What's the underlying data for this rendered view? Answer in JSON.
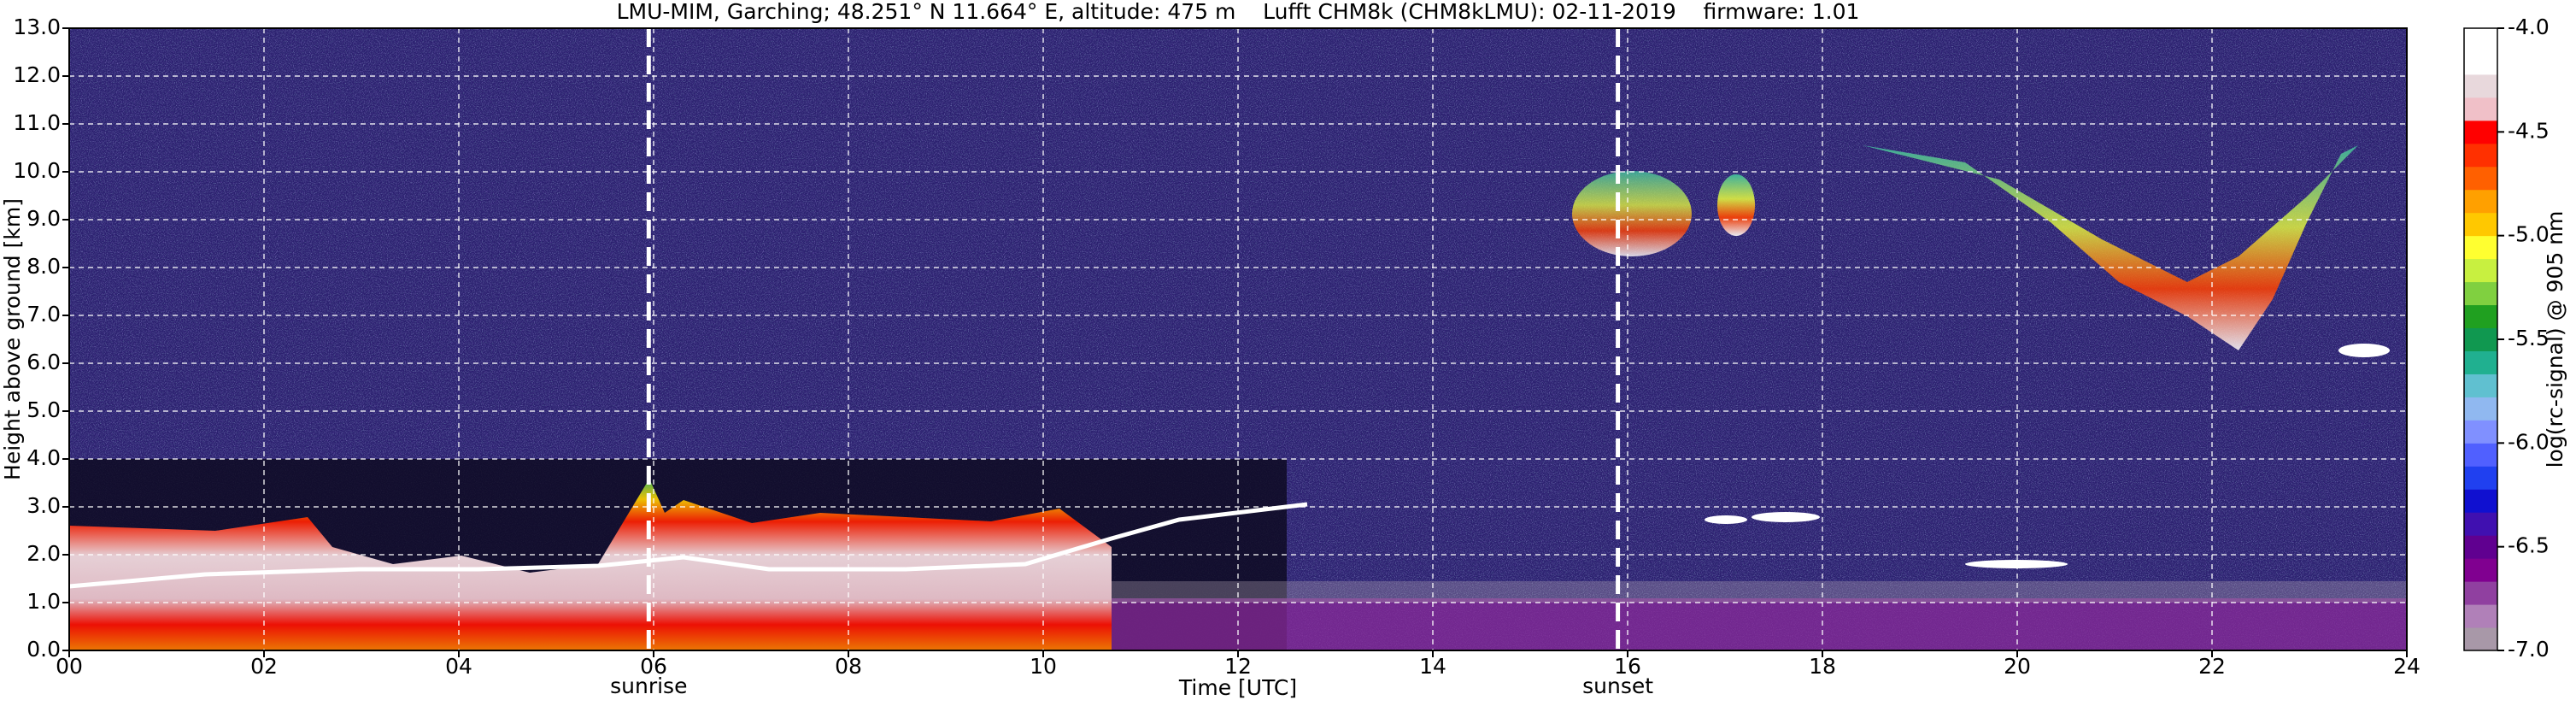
{
  "chart_data": {
    "type": "heatmap",
    "title": "LMU-MIM, Garching; 48.251° N 11.664° E, altitude: 475 m    Lufft CHM8k (CHM8kLMU): 02-11-2019    firmware: 1.01",
    "x_label": "Time [UTC]",
    "y_label": "Height above ground [km]",
    "xlim": [
      0,
      24
    ],
    "xticks": [
      {
        "value": 0,
        "label": "00"
      },
      {
        "value": 2,
        "label": "02"
      },
      {
        "value": 4,
        "label": "04"
      },
      {
        "value": 6,
        "label": "06"
      },
      {
        "value": 8,
        "label": "08"
      },
      10,
      12,
      14,
      16,
      18,
      20,
      22,
      24
    ],
    "ylim": [
      0,
      13
    ],
    "yticks": [
      {
        "value": 0,
        "label": "0.0"
      },
      {
        "value": 1,
        "label": "1.0"
      },
      {
        "value": 2,
        "label": "2.0"
      },
      {
        "value": 3,
        "label": "3.0"
      },
      {
        "value": 4,
        "label": "4.0"
      },
      {
        "value": 5,
        "label": "5.0"
      },
      {
        "value": 6,
        "label": "6.0"
      },
      {
        "value": 7,
        "label": "7.0"
      },
      {
        "value": 8,
        "label": "8.0"
      },
      {
        "value": 9,
        "label": "9.0"
      },
      {
        "value": 10,
        "label": "10.0"
      },
      {
        "value": 11,
        "label": "11.0"
      },
      {
        "value": 12,
        "label": "12.0"
      },
      {
        "value": 13,
        "label": "13.0"
      }
    ],
    "grid": true,
    "annotations": [
      {
        "x": 5.95,
        "label": "sunrise"
      },
      {
        "x": 15.9,
        "label": "sunset"
      }
    ],
    "colorbar": {
      "label": "log(rc-signal) @ 905 nm",
      "lim": [
        -7,
        -4
      ],
      "ticks": [
        {
          "value": -7,
          "label": "-7.0"
        },
        {
          "value": -6.5,
          "label": "-6.5"
        },
        {
          "value": -6,
          "label": "-6.0"
        },
        {
          "value": -5.5,
          "label": "-5.5"
        },
        {
          "value": -5,
          "label": "-5.0"
        },
        {
          "value": -4.5,
          "label": "-4.5"
        },
        {
          "value": -4,
          "label": "-4.0"
        }
      ],
      "colors": [
        "#a898a8",
        "#b080b8",
        "#9040a0",
        "#800090",
        "#600090",
        "#4010b0",
        "#1010d0",
        "#2040f0",
        "#5060ff",
        "#8090ff",
        "#90b8f0",
        "#60c0d0",
        "#20b090",
        "#109850",
        "#20a020",
        "#80d040",
        "#c8f040",
        "#ffff30",
        "#ffc800",
        "#ffa000",
        "#ff6000",
        "#ff3000",
        "#ff0000",
        "#f0c0c8",
        "#e8d8dc",
        "#ffffff",
        "#ffffff"
      ]
    }
  }
}
